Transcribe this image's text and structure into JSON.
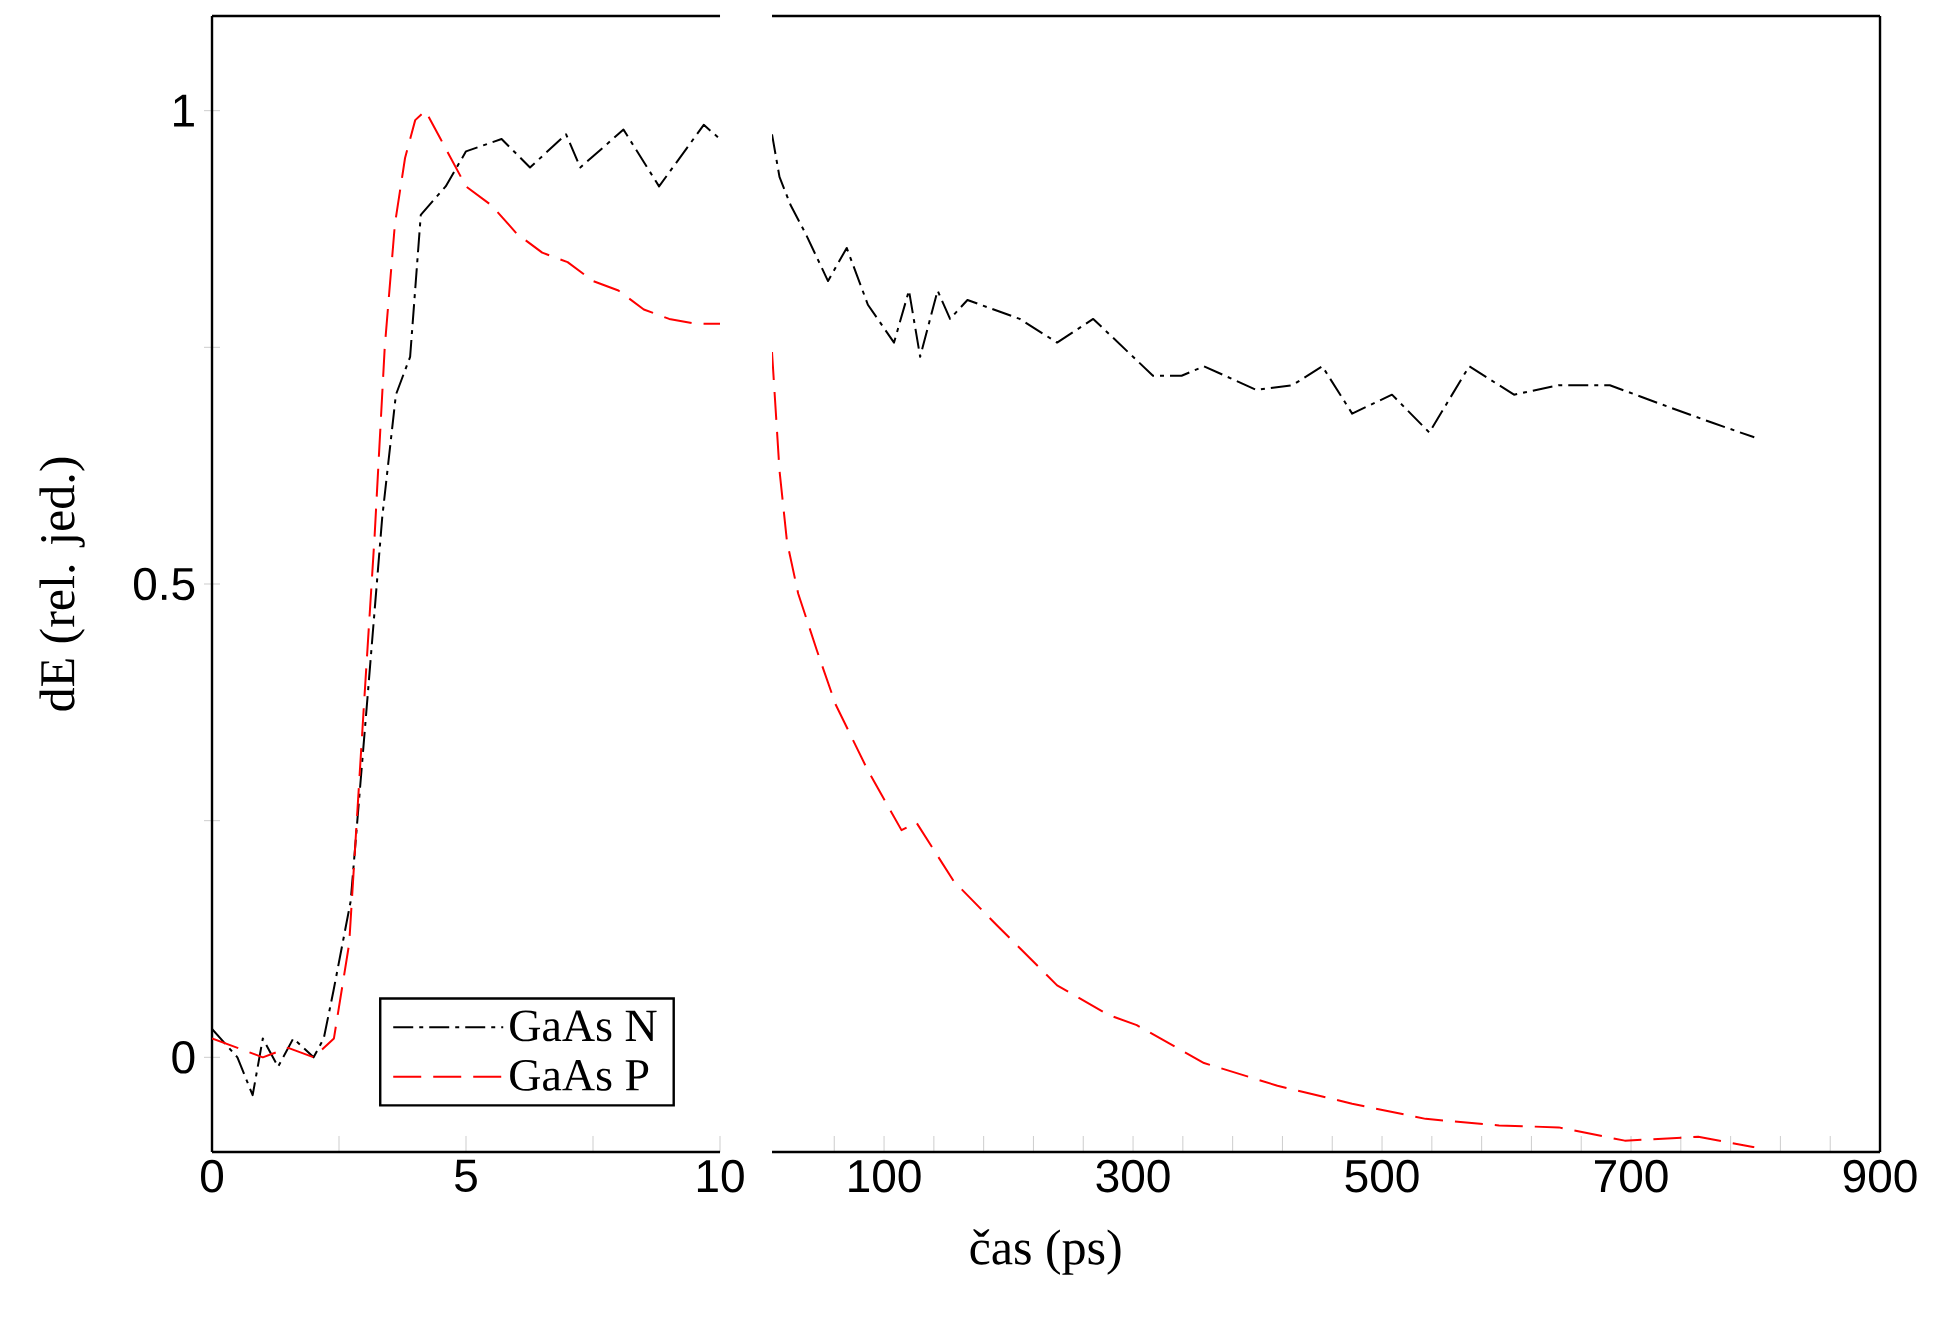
{
  "chart_data": [
    {
      "type": "line",
      "ylabel": "dE (rel. jed.)",
      "xlim": [
        0,
        10
      ],
      "ylim": [
        -0.1,
        1.1
      ],
      "xticks": [
        0,
        {
          "value": 2.5,
          "label": null
        },
        5,
        {
          "value": 7.5,
          "label": null
        },
        10
      ],
      "yticks": [
        0,
        {
          "value": 0.25,
          "label": null
        },
        0.5,
        {
          "value": 0.75,
          "label": null
        },
        1
      ],
      "legend": "bottom",
      "series": [
        {
          "name": "GaAs N",
          "color": "#000000",
          "line_style": "dashdot",
          "x": [
            0,
            0.5,
            0.8,
            1.0,
            1.3,
            1.6,
            2.0,
            2.2,
            2.39,
            2.73,
            3.07,
            3.35,
            3.62,
            3.9,
            4.11,
            4.6,
            5.0,
            5.7,
            6.26,
            6.97,
            7.25,
            8.1,
            8.8,
            9.68,
            10
          ],
          "values": [
            0.03,
            0.0,
            -0.04,
            0.02,
            -0.01,
            0.02,
            0.0,
            0.02,
            0.07,
            0.165,
            0.386,
            0.57,
            0.7,
            0.74,
            0.89,
            0.92,
            0.957,
            0.97,
            0.94,
            0.975,
            0.94,
            0.98,
            0.92,
            0.985,
            0.97
          ]
        },
        {
          "name": "GaAs P",
          "color": "#ff0000",
          "line_style": "dashed",
          "x": [
            0,
            0.5,
            1.0,
            1.5,
            2.0,
            2.4,
            2.7,
            3.0,
            3.2,
            3.4,
            3.6,
            3.8,
            4.0,
            4.2,
            4.5,
            5.0,
            5.5,
            6.0,
            6.5,
            7.0,
            7.5,
            8.0,
            8.5,
            9.0,
            9.5,
            10
          ],
          "values": [
            0.02,
            0.01,
            0.0,
            0.01,
            0.0,
            0.02,
            0.12,
            0.38,
            0.55,
            0.75,
            0.88,
            0.95,
            0.99,
            1.0,
            0.97,
            0.92,
            0.9,
            0.87,
            0.85,
            0.84,
            0.82,
            0.81,
            0.79,
            0.78,
            0.775,
            0.775
          ]
        }
      ]
    },
    {
      "type": "line",
      "xlabel": "čas (ps)",
      "xlim": [
        10,
        900
      ],
      "ylim": [
        -0.1,
        1.1
      ],
      "tick_labels": "x",
      "xticks": [
        {
          "value": 60,
          "label": null
        },
        100,
        {
          "value": 140,
          "label": null
        },
        {
          "value": 180,
          "label": null
        },
        {
          "value": 220,
          "label": null
        },
        {
          "value": 260,
          "label": null
        },
        300,
        {
          "value": 340,
          "label": null
        },
        {
          "value": 380,
          "label": null
        },
        {
          "value": 420,
          "label": null
        },
        {
          "value": 460,
          "label": null
        },
        500,
        {
          "value": 540,
          "label": null
        },
        {
          "value": 580,
          "label": null
        },
        {
          "value": 620,
          "label": null
        },
        {
          "value": 660,
          "label": null
        },
        700,
        {
          "value": 740,
          "label": null
        },
        {
          "value": 780,
          "label": null
        },
        {
          "value": 820,
          "label": null
        },
        {
          "value": 860,
          "label": null
        },
        900
      ],
      "series": [
        {
          "color": "#000000",
          "line_style": "dashdot",
          "x": [
            10,
            16,
            25,
            37,
            55,
            70,
            87,
            108,
            120,
            129,
            143,
            153,
            167,
            209,
            239,
            268,
            316,
            339,
            357,
            399,
            428,
            452,
            476,
            508,
            538,
            570,
            606,
            642,
            683,
            724,
            766,
            799
          ],
          "values": [
            0.975,
            0.93,
            0.9,
            0.87,
            0.82,
            0.855,
            0.795,
            0.755,
            0.81,
            0.74,
            0.81,
            0.78,
            0.8,
            0.78,
            0.755,
            0.78,
            0.72,
            0.72,
            0.73,
            0.705,
            0.71,
            0.73,
            0.68,
            0.7,
            0.66,
            0.73,
            0.7,
            0.71,
            0.71,
            0.69,
            0.67,
            0.655
          ]
        },
        {
          "color": "#ff0000",
          "line_style": "dashed",
          "x": [
            10,
            16,
            22,
            31,
            46,
            61,
            87,
            114,
            126,
            156,
            191,
            239,
            280,
            303,
            357,
            416,
            476,
            535,
            594,
            642,
            695,
            754,
            799
          ],
          "values": [
            0.745,
            0.62,
            0.545,
            0.49,
            0.43,
            0.373,
            0.303,
            0.24,
            0.248,
            0.186,
            0.139,
            0.076,
            0.045,
            0.034,
            -0.006,
            -0.03,
            -0.049,
            -0.065,
            -0.072,
            -0.074,
            -0.088,
            -0.084,
            -0.095
          ]
        }
      ]
    }
  ]
}
